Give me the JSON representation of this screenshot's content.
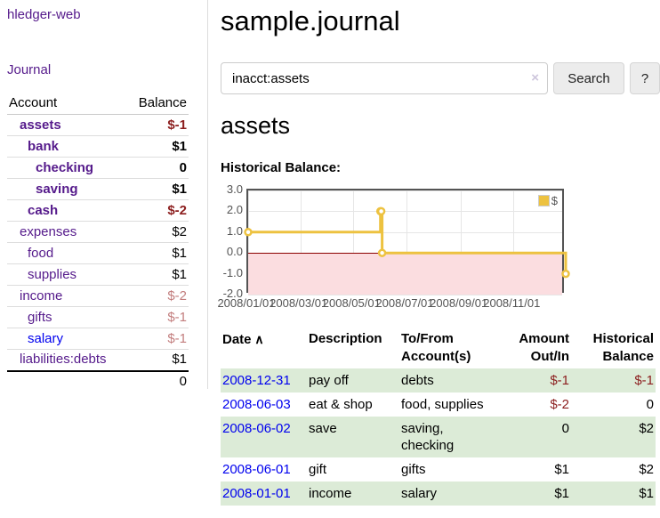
{
  "app": {
    "brand": "hledger-web",
    "nav_journal": "Journal"
  },
  "sidebar": {
    "headers": {
      "account": "Account",
      "balance": "Balance"
    },
    "rows": [
      {
        "name": "assets",
        "indent": 1,
        "bold": true,
        "name_color": "purple",
        "balance": "$-1",
        "balance_style": "neg"
      },
      {
        "name": "bank",
        "indent": 2,
        "bold": true,
        "name_color": "purple",
        "balance": "$1",
        "balance_style": "pos"
      },
      {
        "name": "checking",
        "indent": 3,
        "bold": true,
        "name_color": "purple",
        "balance": "0",
        "balance_style": "pos"
      },
      {
        "name": "saving",
        "indent": 3,
        "bold": true,
        "name_color": "purple",
        "balance": "$1",
        "balance_style": "pos"
      },
      {
        "name": "cash",
        "indent": 2,
        "bold": true,
        "name_color": "purple",
        "balance": "$-2",
        "balance_style": "neg"
      },
      {
        "name": "expenses",
        "indent": 1,
        "bold": false,
        "name_color": "purple",
        "balance": "$2",
        "balance_style": "pos"
      },
      {
        "name": "food",
        "indent": 2,
        "bold": false,
        "name_color": "purple",
        "balance": "$1",
        "balance_style": "pos"
      },
      {
        "name": "supplies",
        "indent": 2,
        "bold": false,
        "name_color": "purple",
        "balance": "$1",
        "balance_style": "pos"
      },
      {
        "name": "income",
        "indent": 1,
        "bold": false,
        "name_color": "purple",
        "balance": "$-2",
        "balance_style": "dimneg"
      },
      {
        "name": "gifts",
        "indent": 2,
        "bold": false,
        "name_color": "purple",
        "balance": "$-1",
        "balance_style": "dimneg"
      },
      {
        "name": "salary",
        "indent": 2,
        "bold": false,
        "name_color": "blue",
        "balance": "$-1",
        "balance_style": "dimneg"
      },
      {
        "name": "liabilities:debts",
        "indent": 1,
        "bold": false,
        "name_color": "purple",
        "balance": "$1",
        "balance_style": "pos"
      }
    ],
    "total": "0"
  },
  "main": {
    "title": "sample.journal"
  },
  "search": {
    "value": "inacct:assets",
    "clear_icon": "×",
    "button_label": "Search",
    "help_label": "?"
  },
  "account_page": {
    "title": "assets",
    "chart_label": "Historical Balance:"
  },
  "chart_data": {
    "type": "line",
    "title": "Historical Balance",
    "steps": true,
    "series": [
      {
        "name": "$",
        "color": "#edc240",
        "points": [
          [
            "2008-01-01",
            1
          ],
          [
            "2008-06-01",
            2
          ],
          [
            "2008-06-02",
            2
          ],
          [
            "2008-06-03",
            0
          ],
          [
            "2008-12-31",
            -1
          ]
        ]
      }
    ],
    "xlim": [
      "2008-01-01",
      "2008-12-31"
    ],
    "ylim": [
      -2,
      3
    ],
    "x_ticks": [
      {
        "date": "2008-01-01",
        "label": "2008/01/01"
      },
      {
        "date": "2008-03-01",
        "label": "2008/03/01"
      },
      {
        "date": "2008-05-01",
        "label": "2008/05/01"
      },
      {
        "date": "2008-07-01",
        "label": "2008/07/01"
      },
      {
        "date": "2008-09-01",
        "label": "2008/09/01"
      },
      {
        "date": "2008-11-01",
        "label": "2008/11/01"
      }
    ],
    "y_ticks": [
      {
        "value": 3,
        "label": "3.0"
      },
      {
        "value": 2,
        "label": "2.0"
      },
      {
        "value": 1,
        "label": "1.0"
      },
      {
        "value": 0,
        "label": "0.0"
      },
      {
        "value": -1,
        "label": "-1.0"
      },
      {
        "value": -2,
        "label": "-2.0"
      }
    ],
    "grid": true,
    "grid_color": "#e6e6e6",
    "border_color": "#545454",
    "zero_line_color": "#8b0000",
    "negative_region_color": "#fbdde0",
    "legend": {
      "position": "top-right",
      "swatch_color": "#edc240",
      "label": "$"
    }
  },
  "register": {
    "headers": [
      {
        "label": "Date",
        "sort_icon": "∧",
        "align": "left"
      },
      {
        "label": "Description",
        "align": "left"
      },
      {
        "label": "To/From Account(s)",
        "align": "left"
      },
      {
        "label": "Amount Out/In",
        "align": "right"
      },
      {
        "label": "Historical Balance",
        "align": "right"
      }
    ],
    "rows": [
      {
        "date": "2008-12-31",
        "description": "pay off",
        "accounts": "debts",
        "amount": "$-1",
        "amount_style": "neg",
        "balance": "$-1",
        "balance_style": "neg"
      },
      {
        "date": "2008-06-03",
        "description": "eat & shop",
        "accounts": "food, supplies",
        "amount": "$-2",
        "amount_style": "neg",
        "balance": "0",
        "balance_style": "pos"
      },
      {
        "date": "2008-06-02",
        "description": "save",
        "accounts": "saving, checking",
        "amount": "0",
        "amount_style": "pos",
        "balance": "$2",
        "balance_style": "pos"
      },
      {
        "date": "2008-06-01",
        "description": "gift",
        "accounts": "gifts",
        "amount": "$1",
        "amount_style": "pos",
        "balance": "$2",
        "balance_style": "pos"
      },
      {
        "date": "2008-01-01",
        "description": "income",
        "accounts": "salary",
        "amount": "$1",
        "amount_style": "pos",
        "balance": "$1",
        "balance_style": "pos"
      }
    ]
  }
}
